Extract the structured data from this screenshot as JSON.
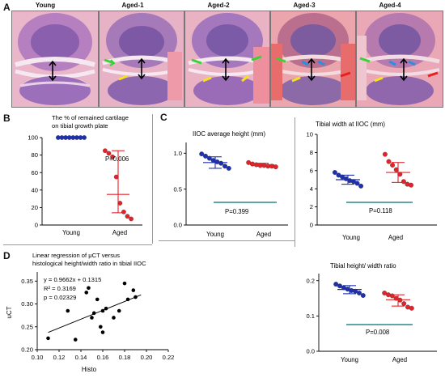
{
  "panel_labels": {
    "a": "A",
    "b": "B",
    "c": "C",
    "d": "D"
  },
  "panel_a": {
    "titles": [
      "Young",
      "Aged-1",
      "Aged-2",
      "Aged-3",
      "Aged-4"
    ]
  },
  "colors": {
    "young": "#1e2fb0",
    "aged": "#e3232a",
    "pbar": "#2a8a8a",
    "green": "#38d338",
    "yellow": "#f5e21b",
    "red": "#e8201c",
    "blue": "#2a8fe0"
  },
  "chart_data": [
    {
      "id": "B",
      "type": "scatter",
      "title": "The % of remained cartilage on tibial growth plate",
      "title_lines": [
        "The % of remained cartilage",
        "on tibial growth plate"
      ],
      "categories": [
        "Young",
        "Aged"
      ],
      "yticks": [
        0,
        20,
        40,
        60,
        80,
        100
      ],
      "ylim": [
        0,
        100
      ],
      "series": [
        {
          "name": "Young",
          "values": [
            100,
            100,
            100,
            100,
            100,
            100,
            100,
            100
          ],
          "mean": 100,
          "err": [
            100,
            100
          ]
        },
        {
          "name": "Aged",
          "values": [
            85,
            82,
            78,
            55,
            25,
            15,
            10,
            7
          ],
          "mean": 35,
          "err": [
            14,
            85
          ]
        }
      ],
      "pvalue": "P=0.006"
    },
    {
      "id": "C1",
      "type": "scatter",
      "title": "IIOC average height (mm)",
      "categories": [
        "Young",
        "Aged"
      ],
      "yticks": [
        0.0,
        0.5,
        1.0
      ],
      "yticklabels": [
        "0.0",
        "0.5",
        "1.0"
      ],
      "ylim": [
        0,
        1.15
      ],
      "series": [
        {
          "name": "Young",
          "values": [
            0.99,
            0.96,
            0.93,
            0.9,
            0.88,
            0.86,
            0.82,
            0.79
          ],
          "mean": 0.87,
          "err": [
            0.79,
            0.95
          ]
        },
        {
          "name": "Aged",
          "values": [
            0.87,
            0.85,
            0.84,
            0.83,
            0.83,
            0.82,
            0.82,
            0.81
          ],
          "mean": 0.84,
          "err": [
            0.82,
            0.86
          ]
        }
      ],
      "pvalue": "P=0.399"
    },
    {
      "id": "C2",
      "type": "scatter",
      "title": "Tibial width at IIOC (mm)",
      "categories": [
        "Young",
        "Aged"
      ],
      "yticks": [
        0,
        2,
        4,
        6,
        8,
        10
      ],
      "ylim": [
        0,
        10
      ],
      "series": [
        {
          "name": "Young",
          "values": [
            5.8,
            5.5,
            5.3,
            5.1,
            4.9,
            4.8,
            4.6,
            4.3
          ],
          "mean": 5.0,
          "err": [
            4.5,
            5.5
          ]
        },
        {
          "name": "Aged",
          "values": [
            7.8,
            7.0,
            6.6,
            6.1,
            5.6,
            4.8,
            4.5,
            4.4
          ],
          "mean": 5.8,
          "err": [
            4.7,
            6.9
          ]
        }
      ],
      "pvalue": "P=0.118"
    },
    {
      "id": "C3",
      "type": "scatter",
      "title": "Tibial height/ width ratio",
      "categories": [
        "Young",
        "Aged"
      ],
      "yticks": [
        0.0,
        0.1,
        0.2
      ],
      "yticklabels": [
        "0.0",
        "0.1",
        "0.2"
      ],
      "ylim": [
        0,
        0.22
      ],
      "series": [
        {
          "name": "Young",
          "values": [
            0.19,
            0.185,
            0.18,
            0.176,
            0.172,
            0.17,
            0.165,
            0.158
          ],
          "mean": 0.175,
          "err": [
            0.163,
            0.186
          ]
        },
        {
          "name": "Aged",
          "values": [
            0.165,
            0.16,
            0.157,
            0.15,
            0.145,
            0.135,
            0.125,
            0.122
          ],
          "mean": 0.146,
          "err": [
            0.128,
            0.16
          ]
        }
      ],
      "pvalue": "P=0.008"
    },
    {
      "id": "D",
      "type": "scatter",
      "title": "Linear regression of μCT versus histological height/width ratio in tibial IIOC",
      "title_lines": [
        "Linear regression of μCT versus",
        "histological height/width ratio in tibial IIOC"
      ],
      "xlabel": "Histo",
      "ylabel": "uCT",
      "xlim": [
        0.1,
        0.22
      ],
      "ylim": [
        0.2,
        0.37
      ],
      "xticks": [
        "0.10",
        "0.12",
        "0.14",
        "0.16",
        "0.18",
        "0.20",
        "0.22"
      ],
      "yticks": [
        "0.20",
        "0.25",
        "0.30",
        "0.35"
      ],
      "x": [
        0.11,
        0.128,
        0.135,
        0.145,
        0.147,
        0.15,
        0.152,
        0.155,
        0.158,
        0.16,
        0.16,
        0.163,
        0.17,
        0.175,
        0.18,
        0.183,
        0.188,
        0.19
      ],
      "y": [
        0.225,
        0.285,
        0.222,
        0.325,
        0.335,
        0.27,
        0.28,
        0.31,
        0.25,
        0.285,
        0.238,
        0.29,
        0.27,
        0.285,
        0.345,
        0.31,
        0.33,
        0.315
      ],
      "fit": {
        "slope": 0.9662,
        "intercept": 0.1315
      },
      "annotations": [
        "y = 0.9662x + 0.1315",
        "R² = 0.3169",
        "p = 0.02329"
      ]
    }
  ]
}
